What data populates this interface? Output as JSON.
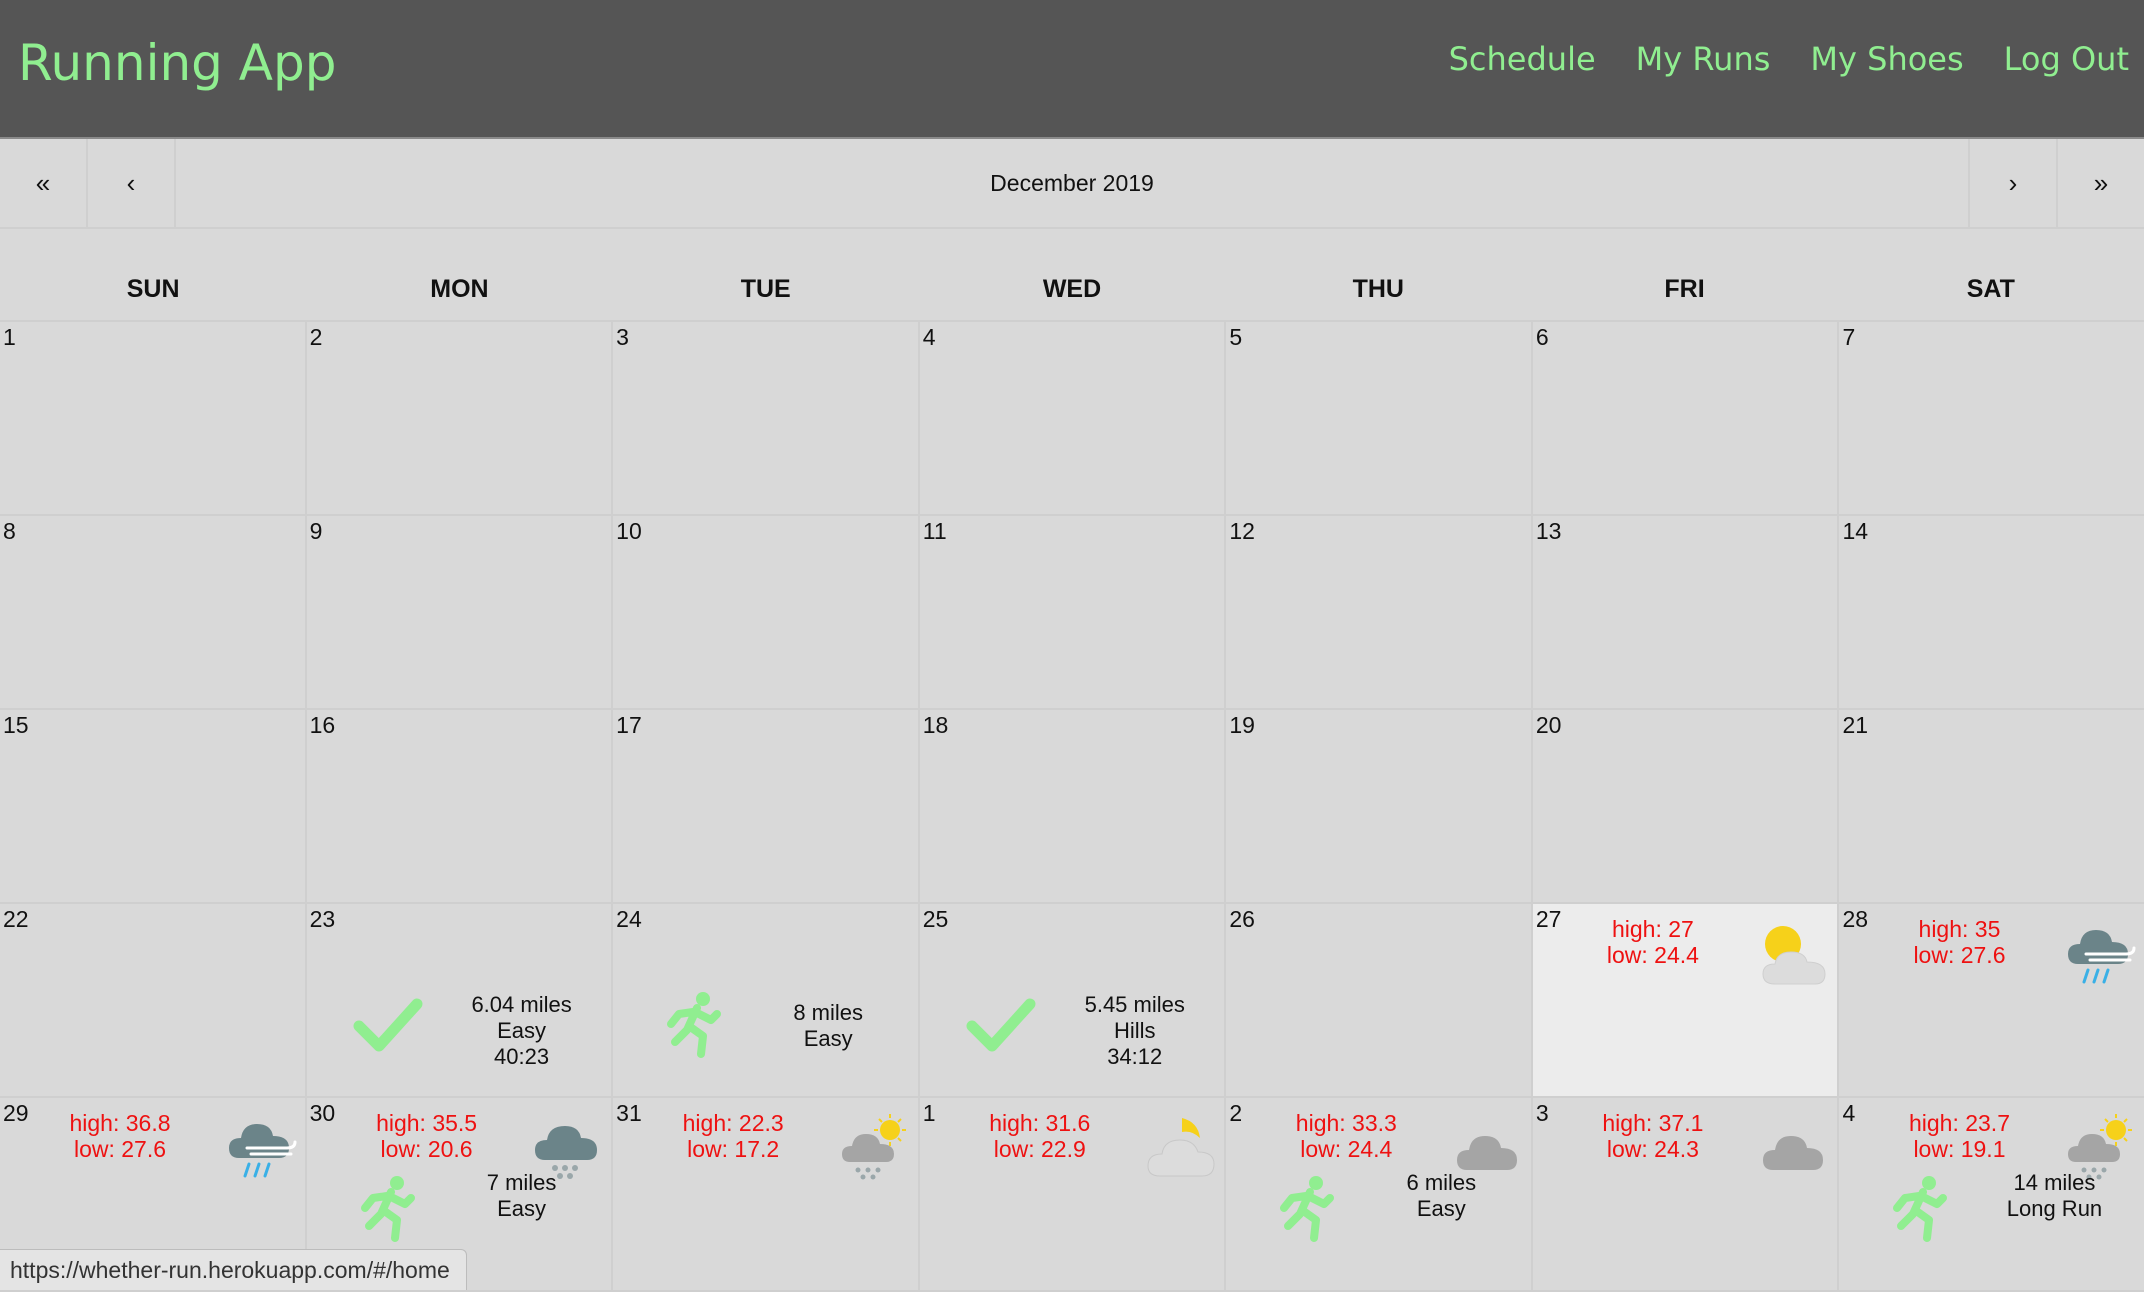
{
  "app": {
    "title": "Running App"
  },
  "nav": [
    {
      "label": "Schedule"
    },
    {
      "label": "My Runs"
    },
    {
      "label": "My Shoes"
    },
    {
      "label": "Log Out"
    }
  ],
  "calendar": {
    "month_label": "December 2019",
    "nav": {
      "prev_year": "«",
      "prev_month": "‹",
      "next_month": "›",
      "next_year": "»"
    },
    "weekdays": [
      "SUN",
      "MON",
      "TUE",
      "WED",
      "THU",
      "FRI",
      "SAT"
    ],
    "weeks": [
      {
        "days": [
          {
            "num": "1"
          },
          {
            "num": "2"
          },
          {
            "num": "3"
          },
          {
            "num": "4"
          },
          {
            "num": "5"
          },
          {
            "num": "6"
          },
          {
            "num": "7"
          }
        ]
      },
      {
        "days": [
          {
            "num": "8"
          },
          {
            "num": "9"
          },
          {
            "num": "10"
          },
          {
            "num": "11"
          },
          {
            "num": "12"
          },
          {
            "num": "13"
          },
          {
            "num": "14"
          }
        ]
      },
      {
        "days": [
          {
            "num": "15"
          },
          {
            "num": "16"
          },
          {
            "num": "17"
          },
          {
            "num": "18"
          },
          {
            "num": "19"
          },
          {
            "num": "20"
          },
          {
            "num": "21"
          }
        ]
      },
      {
        "days": [
          {
            "num": "22"
          },
          {
            "num": "23",
            "run": {
              "lines": [
                "6.04 miles",
                "Easy",
                "40:23"
              ],
              "icon": "check-icon"
            }
          },
          {
            "num": "24",
            "run": {
              "lines": [
                "8 miles",
                "Easy"
              ],
              "icon": "runner-icon"
            }
          },
          {
            "num": "25",
            "run": {
              "lines": [
                "5.45 miles",
                "Hills",
                "34:12"
              ],
              "icon": "check-icon"
            }
          },
          {
            "num": "26"
          },
          {
            "num": "27",
            "today": true,
            "weather": {
              "high": "high: 27",
              "low": "low: 24.4",
              "icon": "partly-sunny-icon"
            }
          },
          {
            "num": "28",
            "weather": {
              "high": "high: 35",
              "low": "low: 27.6",
              "icon": "wind-rain-icon"
            }
          }
        ]
      },
      {
        "days": [
          {
            "num": "29",
            "weather": {
              "high": "high: 36.8",
              "low": "low: 27.6",
              "icon": "wind-rain-icon"
            }
          },
          {
            "num": "30",
            "weather": {
              "high": "high: 35.5",
              "low": "low: 20.6",
              "icon": "snow-cloud-icon"
            },
            "run": {
              "lines": [
                "7 miles",
                "Easy"
              ],
              "icon": "runner-icon"
            }
          },
          {
            "num": "31",
            "weather": {
              "high": "high: 22.3",
              "low": "low: 17.2",
              "icon": "sun-snow-icon"
            }
          },
          {
            "num": "1",
            "weather": {
              "high": "high: 31.6",
              "low": "low: 22.9",
              "icon": "moon-cloud-icon"
            }
          },
          {
            "num": "2",
            "weather": {
              "high": "high: 33.3",
              "low": "low: 24.4",
              "icon": "cloud-icon"
            },
            "run": {
              "lines": [
                "6 miles",
                "Easy"
              ],
              "icon": "runner-icon"
            }
          },
          {
            "num": "3",
            "weather": {
              "high": "high: 37.1",
              "low": "low: 24.3",
              "icon": "cloud-icon"
            }
          },
          {
            "num": "4",
            "weather": {
              "high": "high: 23.7",
              "low": "low: 19.1",
              "icon": "sun-snow-icon"
            },
            "run": {
              "lines": [
                "14 miles",
                "Long Run"
              ],
              "icon": "runner-icon"
            }
          }
        ]
      }
    ]
  },
  "status_bar": {
    "url": "https://whether-run.herokuapp.com/#/home"
  },
  "colors": {
    "accent": "#90ee90",
    "header_bg": "#555555",
    "temp_text": "#ee1111"
  }
}
